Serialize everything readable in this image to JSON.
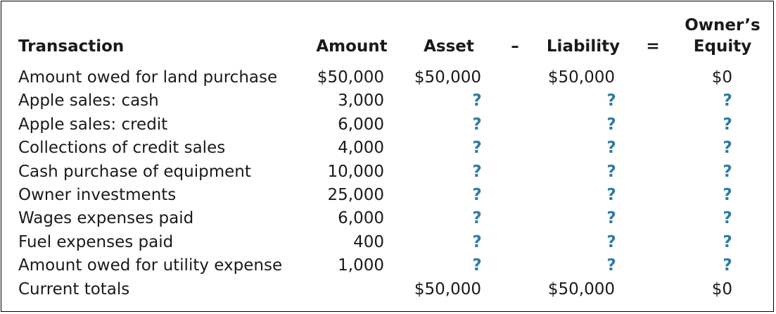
{
  "headers": {
    "transaction": "Transaction",
    "amount": "Amount",
    "asset": "Asset",
    "minus": "–",
    "liability": "Liability",
    "equals": "=",
    "equity_line1": "Owner’s",
    "equity_line2": "Equity"
  },
  "rows": [
    {
      "transaction": "Amount owed for land purchase",
      "amount": "$50,000",
      "asset": "$50,000",
      "liability": "$50,000",
      "equity": "$0"
    },
    {
      "transaction": "Apple sales: cash",
      "amount": "3,000",
      "asset": "?",
      "liability": "?",
      "equity": "?"
    },
    {
      "transaction": "Apple sales: credit",
      "amount": "6,000",
      "asset": "?",
      "liability": "?",
      "equity": "?"
    },
    {
      "transaction": "Collections of credit sales",
      "amount": "4,000",
      "asset": "?",
      "liability": "?",
      "equity": "?"
    },
    {
      "transaction": "Cash purchase of equipment",
      "amount": "10,000",
      "asset": "?",
      "liability": "?",
      "equity": "?"
    },
    {
      "transaction": "Owner investments",
      "amount": "25,000",
      "asset": "?",
      "liability": "?",
      "equity": "?"
    },
    {
      "transaction": "Wages expenses paid",
      "amount": "6,000",
      "asset": "?",
      "liability": "?",
      "equity": "?"
    },
    {
      "transaction": "Fuel expenses paid",
      "amount": "400",
      "asset": "?",
      "liability": "?",
      "equity": "?"
    },
    {
      "transaction": "Amount owed for utility expense",
      "amount": "1,000",
      "asset": "?",
      "liability": "?",
      "equity": "?"
    }
  ],
  "totals": {
    "label": "Current totals",
    "asset": "$50,000",
    "liability": "$50,000",
    "equity": "$0"
  },
  "colors": {
    "question_mark": "#2e7ca6",
    "border": "#000000",
    "text": "#1a1a1a"
  }
}
